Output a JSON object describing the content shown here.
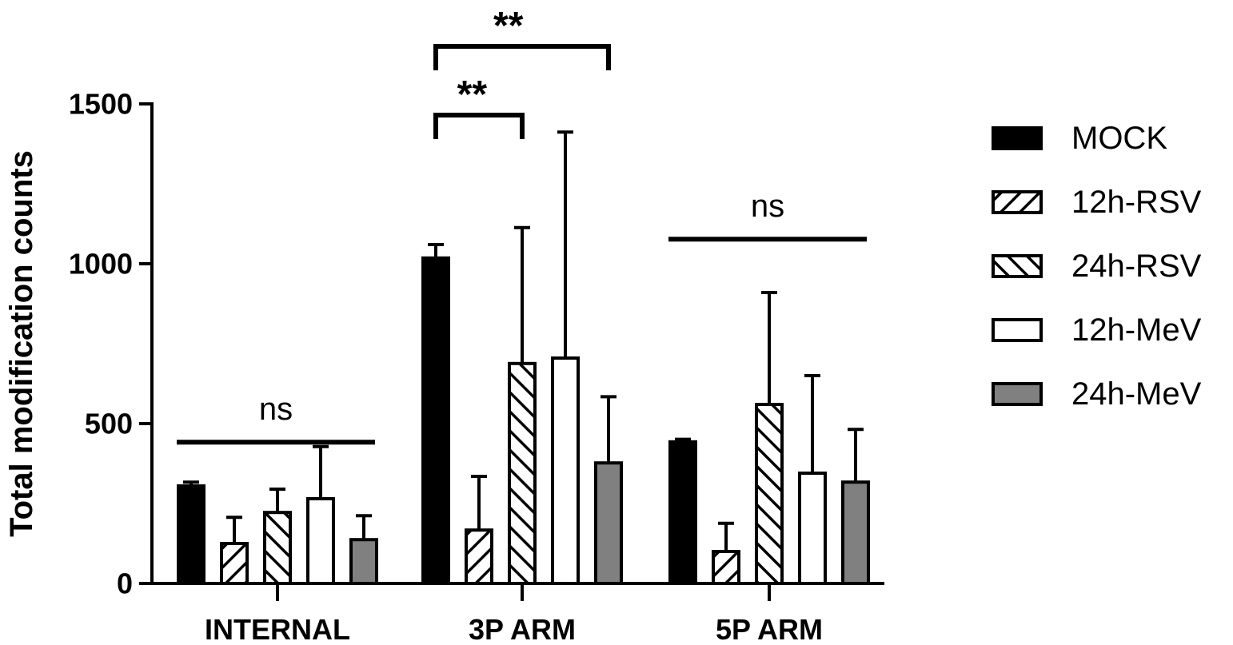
{
  "chart_data": {
    "type": "bar",
    "ylabel": "Total modification counts",
    "xlabel": "",
    "ylim": [
      0,
      1500
    ],
    "yticks": [
      0,
      500,
      1000,
      1500
    ],
    "categories": [
      "INTERNAL",
      "3P ARM",
      "5P ARM"
    ],
    "series": [
      {
        "name": "MOCK",
        "pattern": "solid-black",
        "values": [
          305,
          1018,
          443
        ],
        "errors": [
          12,
          42,
          8
        ]
      },
      {
        "name": "12h-RSV",
        "pattern": "back-hatch",
        "values": [
          125,
          167,
          100
        ],
        "errors": [
          82,
          168,
          88
        ]
      },
      {
        "name": "24h-RSV",
        "pattern": "forward-hatch",
        "values": [
          222,
          688,
          560
        ],
        "errors": [
          73,
          425,
          350
        ]
      },
      {
        "name": "12h-MeV",
        "pattern": "white",
        "values": [
          265,
          705,
          345
        ],
        "errors": [
          163,
          707,
          305
        ]
      },
      {
        "name": "24h-MeV",
        "pattern": "gray",
        "values": [
          137,
          377,
          317
        ],
        "errors": [
          75,
          207,
          165
        ]
      }
    ],
    "annotations": [
      {
        "type": "line",
        "label": "ns",
        "group": 0,
        "from": 0,
        "to": 4,
        "level": 442
      },
      {
        "type": "bracket",
        "label": "**",
        "group": 1,
        "from": 0,
        "to": 2,
        "level": 1465
      },
      {
        "type": "bracket",
        "label": "**",
        "group": 1,
        "from": 0,
        "to": 4,
        "level": 1680
      },
      {
        "type": "line",
        "label": "ns",
        "group": 2,
        "from": 0,
        "to": 4,
        "level": 1077
      }
    ],
    "legend": {
      "placement": "right"
    },
    "colors": {
      "mock": "#000000",
      "rsv12": "#ffffff",
      "rsv24": "#ffffff",
      "mev12": "#ffffff",
      "mev24": "#808080",
      "hatch": "#000000"
    }
  }
}
